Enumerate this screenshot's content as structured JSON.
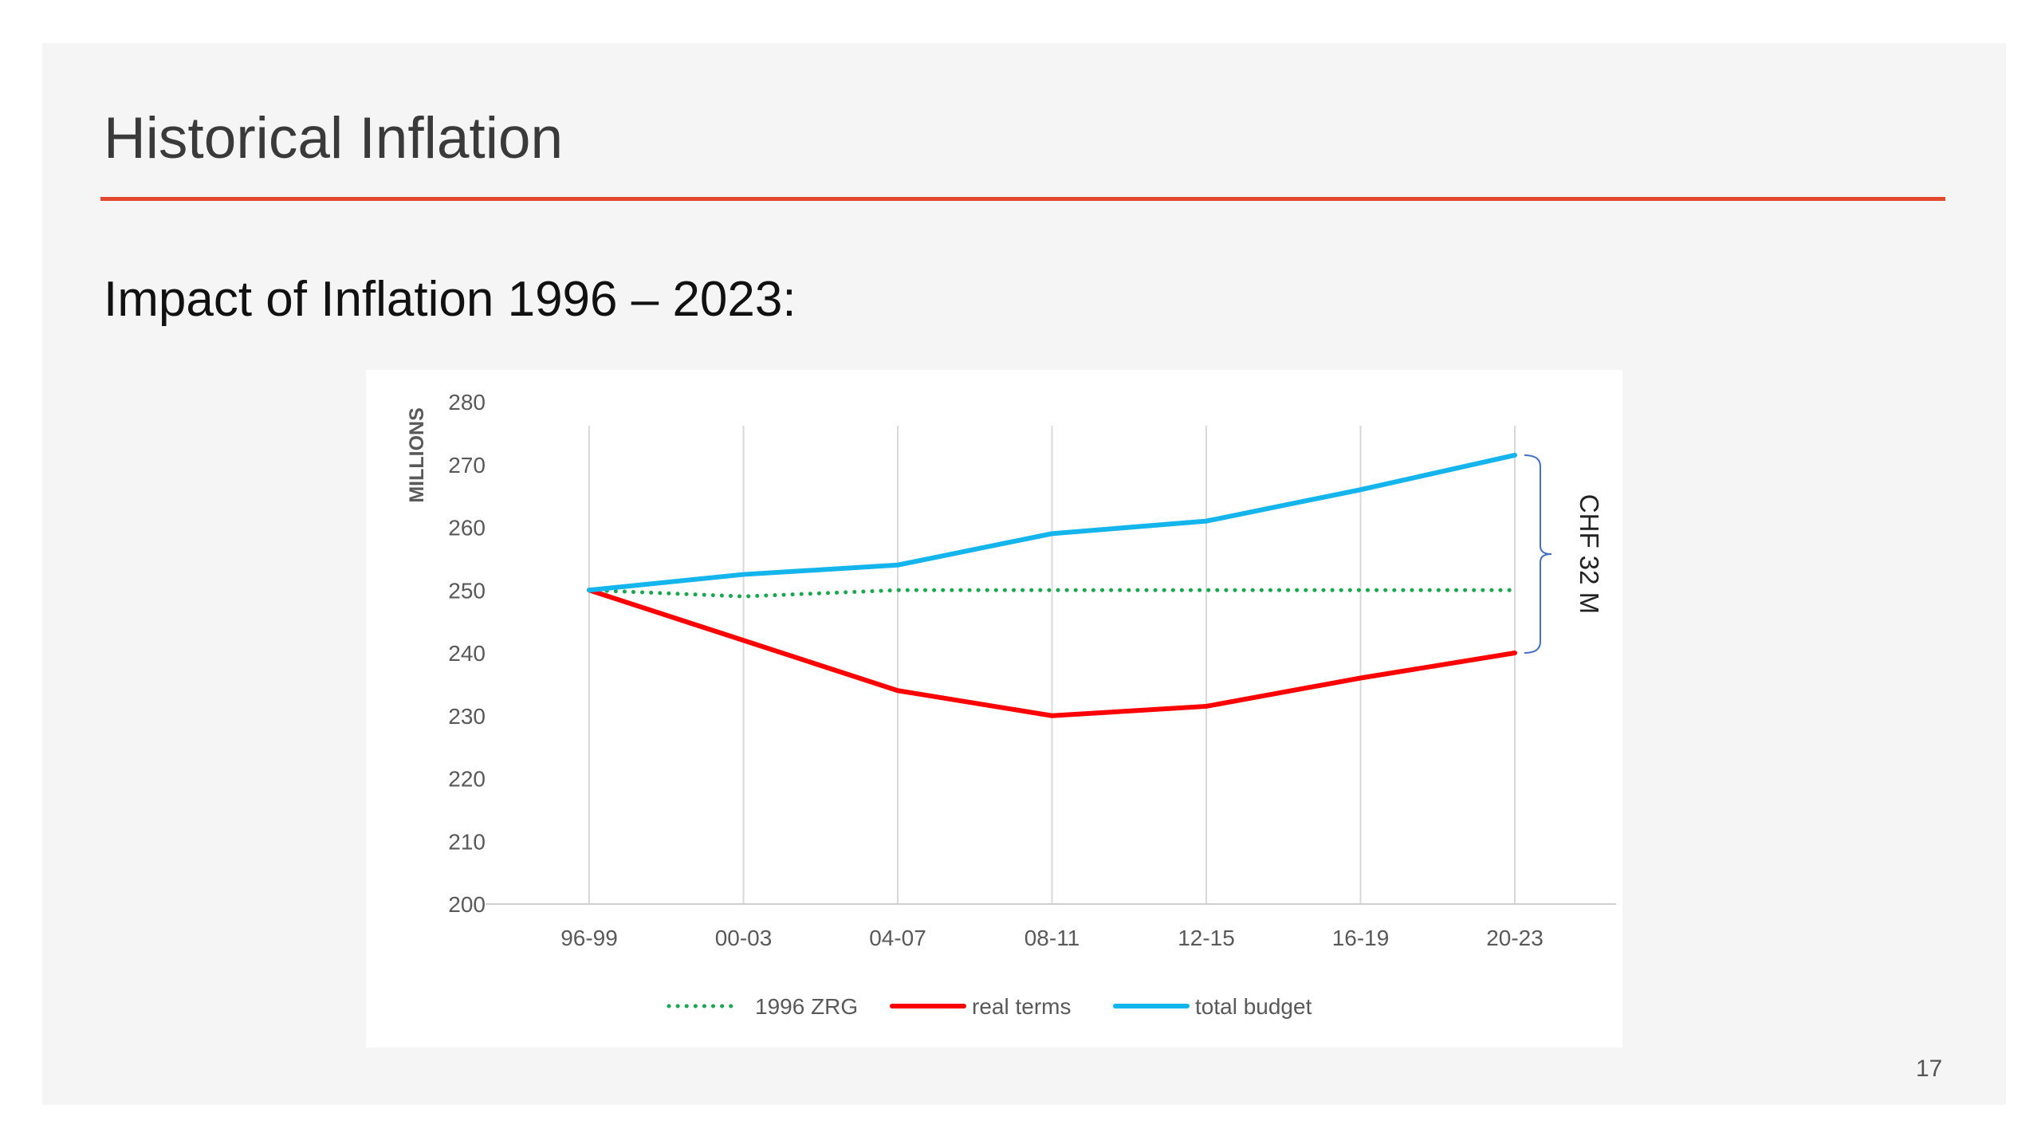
{
  "slide": {
    "title": "Historical Inflation",
    "subtitle": "Impact of Inflation 1996 – 2023:",
    "page_number": "17",
    "accent_color": "#e2492f"
  },
  "chart_data": {
    "type": "line",
    "ylabel": "MILLIONS",
    "ylim": [
      200,
      280
    ],
    "yticks": [
      200,
      210,
      220,
      230,
      240,
      250,
      260,
      270,
      280
    ],
    "categories": [
      "96-99",
      "00-03",
      "04-07",
      "08-11",
      "12-15",
      "16-19",
      "20-23"
    ],
    "grid": "vertical",
    "legend_position": "bottom",
    "series": [
      {
        "name": "1996 ZRG",
        "color": "#1aa84e",
        "style": "dotted",
        "values": [
          250,
          249,
          250,
          250,
          250,
          250,
          250
        ]
      },
      {
        "name": "real terms",
        "color": "#ff0000",
        "style": "solid",
        "values": [
          250,
          242,
          234,
          230,
          231.5,
          236,
          240
        ]
      },
      {
        "name": "total budget",
        "color": "#14b4ec",
        "style": "solid",
        "values": [
          250,
          252.5,
          254,
          259,
          261,
          266,
          271.5
        ]
      }
    ],
    "annotation": {
      "text": "CHF 32 M",
      "from": 240,
      "to": 271.5,
      "at": "20-23"
    }
  }
}
